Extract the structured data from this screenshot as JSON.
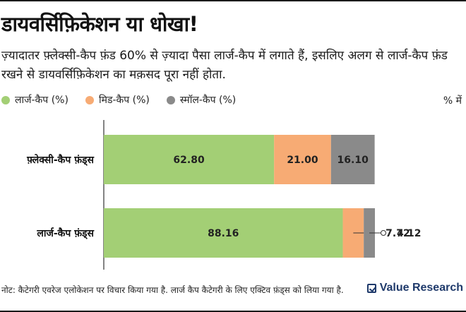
{
  "header": {
    "title": "डायवर्सिफ़िकेशन या धोखा!",
    "subtitle": "ज़्यादातर फ़्लेक्सी-कैप फ़ंड 60% से ज़्यादा पैसा लार्ज-कैप में लगाते हैं, इसलिए अलग से लार्ज-कैप फ़ंड रखने से डायवर्सिफ़िकेशन का मक़सद पूरा नहीं होता."
  },
  "unit_label": "% में",
  "footnote": "नोट: कैटेगरी एवरेज एलोकेशन पर विचार किया गया है. लार्ज कैप कैटेगरी के लिए एक्टिव फ़ंड्स को लिया गया है.",
  "brand": {
    "name": "Value Research",
    "icon": "check-box-icon"
  },
  "chart_data": {
    "type": "bar",
    "orientation": "horizontal",
    "stacked": true,
    "categories": [
      "फ़्लेक्सी-कैप फ़ंड्स",
      "लार्ज-कैप फ़ंड्स"
    ],
    "series": [
      {
        "name": "लार्ज-कैप (%)",
        "color": "#a3cf75",
        "values": [
          62.8,
          88.16
        ],
        "labels": [
          "62.80",
          "88.16"
        ]
      },
      {
        "name": "मिड-कैप (%)",
        "color": "#f7ab74",
        "values": [
          21.0,
          7.72
        ],
        "labels": [
          "21.00",
          "7.72"
        ]
      },
      {
        "name": "स्मॉल-कैप (%)",
        "color": "#8a8a8a",
        "values": [
          16.1,
          4.12
        ],
        "labels": [
          "16.10",
          "4.12"
        ]
      }
    ],
    "xlim": [
      0,
      100
    ],
    "legend_position": "top-left",
    "grid": false
  }
}
